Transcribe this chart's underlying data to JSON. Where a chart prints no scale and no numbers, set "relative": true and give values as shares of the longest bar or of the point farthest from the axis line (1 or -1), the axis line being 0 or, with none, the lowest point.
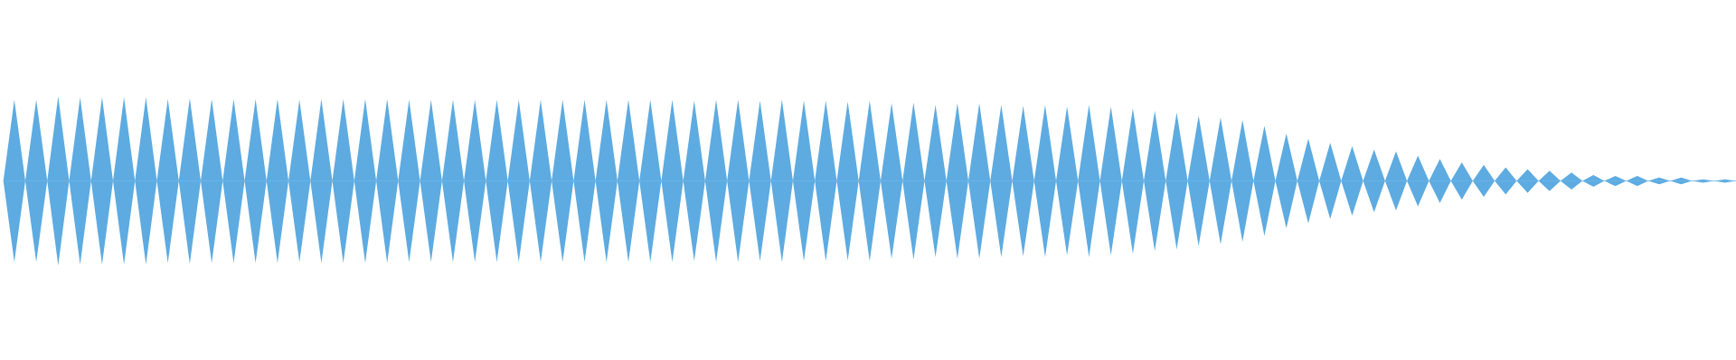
{
  "chart_data": {
    "type": "area",
    "relative": true,
    "categories": [
      null,
      null,
      null,
      null,
      null,
      null,
      null,
      null,
      null,
      null,
      null,
      null,
      null,
      null,
      null,
      null,
      null,
      null,
      null,
      null,
      null,
      null,
      null,
      null,
      null,
      null,
      null,
      null,
      null,
      null,
      null,
      null,
      null,
      null,
      null,
      null,
      null,
      null,
      null,
      null,
      null,
      null,
      null,
      null,
      null,
      null,
      null,
      null,
      null,
      null,
      null,
      null,
      null,
      null,
      null,
      null,
      null,
      null,
      null,
      null,
      null,
      null,
      null,
      null,
      null,
      null,
      null,
      null,
      null,
      null,
      null,
      null,
      null,
      null,
      null,
      null,
      null,
      null,
      null,
      null,
      null,
      null,
      null,
      null,
      null,
      null,
      null,
      null,
      null,
      null,
      null,
      null,
      null,
      null,
      null,
      null,
      null,
      null,
      null,
      null,
      null,
      null,
      null,
      null,
      null,
      null,
      null,
      null,
      null,
      null,
      null,
      null,
      null,
      null,
      null,
      null,
      null,
      null,
      null,
      null,
      null,
      null,
      null,
      null,
      null,
      null,
      null,
      null,
      null,
      null,
      null,
      null,
      null,
      null,
      null,
      null,
      null,
      null,
      null,
      null,
      null,
      null,
      null,
      null,
      null,
      null,
      null,
      null,
      null,
      null,
      null,
      null,
      null,
      null,
      null,
      null,
      null,
      null,
      null
    ],
    "series": [
      {
        "color": "#5dabe1",
        "values": [
          0,
          0.96,
          0,
          0.96,
          0,
          1,
          0,
          0.99,
          0,
          0.99,
          0,
          0.99,
          0,
          0.99,
          0,
          0.97,
          0,
          0.98,
          0,
          0.97,
          0,
          0.97,
          0,
          0.97,
          0,
          0.97,
          0,
          0.96,
          0,
          0.97,
          0,
          0.97,
          0,
          0.97,
          0,
          0.97,
          0,
          0.96,
          0,
          0.96,
          0,
          0.96,
          0,
          0.96,
          0,
          0.96,
          0,
          0.96,
          0,
          0.96,
          0,
          0.96,
          0,
          0.96,
          0,
          0.96,
          0,
          0.96,
          0,
          0.96,
          0,
          0.96,
          0,
          0.95,
          0,
          0.96,
          0,
          0.96,
          0,
          0.95,
          0,
          0.96,
          0,
          0.95,
          0,
          0.95,
          0,
          0.94,
          0,
          0.95,
          0,
          0.92,
          0,
          0.93,
          0,
          0.9,
          0,
          0.92,
          0,
          0.92,
          0,
          0.9,
          0,
          0.89,
          0,
          0.9,
          0,
          0.88,
          0,
          0.9,
          0,
          0.88,
          0,
          0.86,
          0,
          0.83,
          0,
          0.81,
          0,
          0.77,
          0,
          0.75,
          0,
          0.72,
          0,
          0.65,
          0,
          0.56,
          0,
          0.5,
          0,
          0.45,
          0,
          0.41,
          0,
          0.37,
          0,
          0.35,
          0,
          0.3,
          0,
          0.26,
          0,
          0.22,
          0,
          0.19,
          0,
          0.16,
          0,
          0.14,
          0,
          0.12,
          0,
          0.1,
          0,
          0.07,
          0,
          0.06,
          0,
          0.06,
          0,
          0.04,
          0,
          0.04,
          0,
          0.02,
          0,
          0.02,
          0
        ]
      },
      {
        "color": "#5dabe1",
        "values": [
          0,
          -0.96,
          0,
          -0.96,
          0,
          -1,
          0,
          -0.99,
          0,
          -0.99,
          0,
          -0.99,
          0,
          -0.99,
          0,
          -0.97,
          0,
          -0.98,
          0,
          -0.97,
          0,
          -0.97,
          0,
          -0.97,
          0,
          -0.97,
          0,
          -0.96,
          0,
          -0.97,
          0,
          -0.97,
          0,
          -0.97,
          0,
          -0.97,
          0,
          -0.96,
          0,
          -0.96,
          0,
          -0.96,
          0,
          -0.96,
          0,
          -0.96,
          0,
          -0.96,
          0,
          -0.96,
          0,
          -0.96,
          0,
          -0.96,
          0,
          -0.96,
          0,
          -0.96,
          0,
          -0.96,
          0,
          -0.96,
          0,
          -0.95,
          0,
          -0.96,
          0,
          -0.96,
          0,
          -0.95,
          0,
          -0.96,
          0,
          -0.95,
          0,
          -0.95,
          0,
          -0.94,
          0,
          -0.95,
          0,
          -0.92,
          0,
          -0.93,
          0,
          -0.9,
          0,
          -0.92,
          0,
          -0.92,
          0,
          -0.9,
          0,
          -0.89,
          0,
          -0.9,
          0,
          -0.88,
          0,
          -0.9,
          0,
          -0.88,
          0,
          -0.86,
          0,
          -0.83,
          0,
          -0.81,
          0,
          -0.77,
          0,
          -0.75,
          0,
          -0.72,
          0,
          -0.65,
          0,
          -0.56,
          0,
          -0.5,
          0,
          -0.45,
          0,
          -0.41,
          0,
          -0.37,
          0,
          -0.35,
          0,
          -0.3,
          0,
          -0.26,
          0,
          -0.22,
          0,
          -0.19,
          0,
          -0.16,
          0,
          -0.14,
          0,
          -0.12,
          0,
          -0.1,
          0,
          -0.07,
          0,
          -0.06,
          0,
          -0.06,
          0,
          -0.04,
          0,
          -0.04,
          0,
          -0.02,
          0,
          -0.02,
          0
        ]
      }
    ]
  }
}
